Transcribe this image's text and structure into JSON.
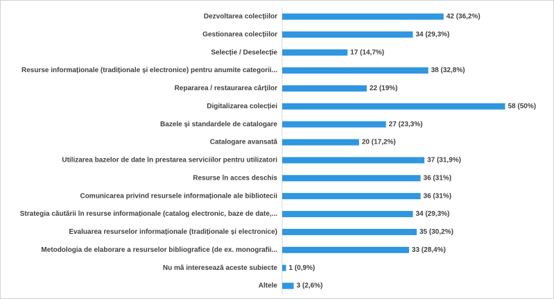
{
  "chart_data": {
    "type": "bar",
    "orientation": "horizontal",
    "categories": [
      "Dezvoltarea colecțiilor",
      "Gestionarea colecțiilor",
      "Selecție / Deselecție",
      "Resurse informaționale (tradiționale și electronice) pentru anumite categorii...",
      "Repararea / restaurarea cărților",
      "Digitalizarea colecției",
      "Bazele și standardele de catalogare",
      "Catalogare avansată",
      "Utilizarea bazelor de date în prestarea serviciilor pentru utilizatori",
      "Resurse în acces deschis",
      "Comunicarea privind resursele informaționale ale bibliotecii",
      "Strategia căutării în resurse informaționale (catalog electronic, baze de date,...",
      "Evaluarea resurselor informaționale (tradiționale și electronice)",
      "Metodologia de elaborare a resurselor bibliografice (de ex. monografii...",
      "Nu mă interesează aceste subiecte",
      "Altele"
    ],
    "values": [
      42,
      34,
      17,
      38,
      22,
      58,
      27,
      20,
      37,
      36,
      36,
      34,
      35,
      33,
      1,
      3
    ],
    "value_labels": [
      "42 (36,2%)",
      "34 (29,3%)",
      "17 (14,7%)",
      "38 (32,8%)",
      "22 (19%)",
      "58 (50%)",
      "27 (23,3%)",
      "20 (17,2%)",
      "37 (31,9%)",
      "36 (31%)",
      "36 (31%)",
      "34 (29,3%)",
      "35 (30,2%)",
      "33 (28,4%)",
      "1 (0,9%)",
      "3 (2,6%)"
    ],
    "color": "#2f96e0",
    "xlim": [
      0,
      70
    ]
  }
}
